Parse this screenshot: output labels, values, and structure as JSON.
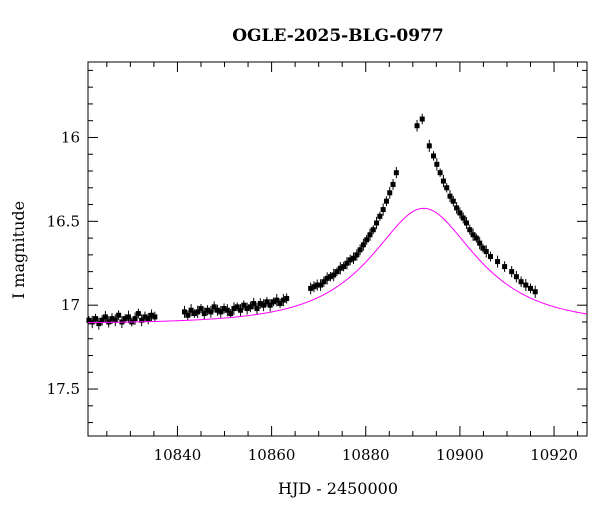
{
  "chart_data": {
    "type": "scatter",
    "title": "OGLE-2025-BLG-0977",
    "xlabel": "HJD - 2450000",
    "ylabel": "I magnitude",
    "xlim": [
      10821,
      10927
    ],
    "ylim": [
      17.78,
      15.55
    ],
    "y_inverted": true,
    "grid": false,
    "x_ticks": [
      10840,
      10860,
      10880,
      10900,
      10920
    ],
    "x_tick_labels": [
      "10840",
      "10860",
      "10880",
      "10900",
      "10920"
    ],
    "y_ticks": [
      16,
      16.5,
      17,
      17.5
    ],
    "y_tick_labels": [
      "16",
      "16.5",
      "17",
      "17.5"
    ],
    "model": {
      "color": "#ff00ff",
      "t0": 10892.3,
      "tE": 17.5,
      "u0": 0.6,
      "baseline_mag": 17.11
    },
    "series": [
      {
        "marker_color": "#000000",
        "x": [
          10821.2,
          10821.9,
          10822.6,
          10823.3,
          10824.0,
          10824.7,
          10825.4,
          10826.1,
          10826.8,
          10827.5,
          10828.2,
          10828.9,
          10829.6,
          10830.3,
          10831.0,
          10831.7,
          10832.4,
          10833.1,
          10833.8,
          10834.5,
          10835.2,
          10841.5,
          10842.2,
          10842.9,
          10843.6,
          10844.3,
          10845.0,
          10845.7,
          10846.4,
          10847.1,
          10847.8,
          10848.5,
          10849.2,
          10849.9,
          10850.6,
          10851.3,
          10852.0,
          10852.7,
          10853.4,
          10854.1,
          10854.8,
          10855.5,
          10856.2,
          10856.9,
          10857.6,
          10858.3,
          10859.0,
          10859.7,
          10860.4,
          10861.1,
          10861.8,
          10862.5,
          10863.2,
          10868.3,
          10869.0,
          10869.7,
          10870.4,
          10871.1,
          10871.8,
          10872.5,
          10873.2,
          10873.9,
          10874.6,
          10875.3,
          10876.0,
          10876.7,
          10877.4,
          10878.1,
          10878.8,
          10879.5,
          10880.2,
          10880.9,
          10881.6,
          10882.3,
          10883.0,
          10883.7,
          10884.4,
          10885.1,
          10885.8,
          10886.5,
          10890.9,
          10892.0,
          10893.5,
          10894.4,
          10895.1,
          10895.8,
          10896.5,
          10897.2,
          10897.9,
          10898.6,
          10899.3,
          10900.0,
          10900.7,
          10901.4,
          10902.1,
          10902.8,
          10903.5,
          10904.2,
          10904.9,
          10905.6,
          10906.5,
          10908.0,
          10909.5,
          10911.0,
          10912.0,
          10913.0,
          10914.0,
          10915.0,
          10916.0
        ],
        "y": [
          17.09,
          17.1,
          17.08,
          17.11,
          17.09,
          17.07,
          17.1,
          17.08,
          17.09,
          17.06,
          17.1,
          17.08,
          17.07,
          17.1,
          17.08,
          17.05,
          17.09,
          17.07,
          17.08,
          17.06,
          17.07,
          17.04,
          17.06,
          17.03,
          17.05,
          17.04,
          17.02,
          17.05,
          17.03,
          17.04,
          17.01,
          17.03,
          17.04,
          17.02,
          17.03,
          17.05,
          17.02,
          17.01,
          17.03,
          17.0,
          17.02,
          17.01,
          16.99,
          17.02,
          16.99,
          17.0,
          16.98,
          17.0,
          16.98,
          16.97,
          16.99,
          16.97,
          16.96,
          16.9,
          16.89,
          16.88,
          16.88,
          16.86,
          16.84,
          16.83,
          16.82,
          16.8,
          16.78,
          16.77,
          16.75,
          16.73,
          16.72,
          16.7,
          16.67,
          16.64,
          16.61,
          16.58,
          16.55,
          16.51,
          16.47,
          16.43,
          16.38,
          16.33,
          16.28,
          16.21,
          15.93,
          15.89,
          16.05,
          16.11,
          16.16,
          16.21,
          16.26,
          16.3,
          16.35,
          16.38,
          16.42,
          16.45,
          16.48,
          16.51,
          16.55,
          16.58,
          16.6,
          16.63,
          16.66,
          16.68,
          16.71,
          16.74,
          16.77,
          16.8,
          16.83,
          16.86,
          16.88,
          16.9,
          16.92
        ]
      }
    ]
  }
}
